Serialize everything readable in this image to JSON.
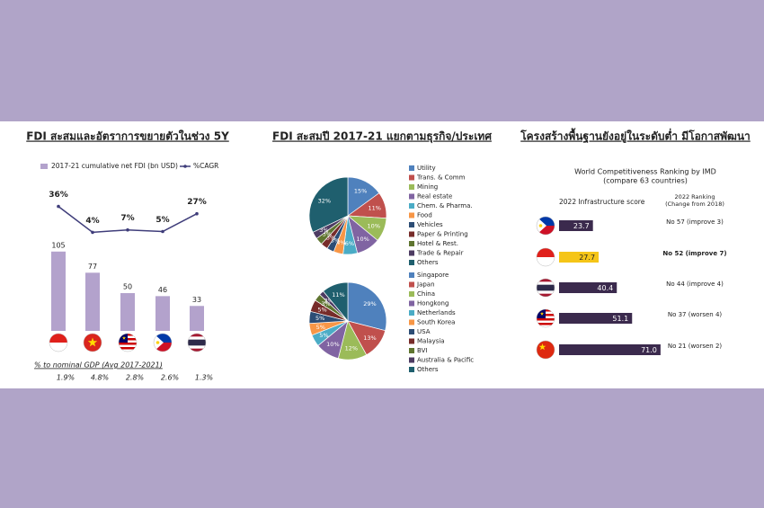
{
  "chart_data": [
    {
      "type": "bar_line",
      "title": "FDI สะสมและอัตราการขยายตัวในช่วง 5Y",
      "categories": [
        null,
        null,
        null,
        null,
        null
      ],
      "series": [
        {
          "name": "2017-21 cumulative net FDI (bn USD)",
          "type": "bar",
          "color": "#b3a2cc",
          "values": [
            105,
            77,
            50,
            46,
            33
          ]
        },
        {
          "name": "%CAGR",
          "type": "line",
          "color": "#3f3d7a",
          "values": [
            36,
            4,
            7,
            5,
            27
          ],
          "value_labels": [
            "36%",
            "4%",
            "7%",
            "5%",
            "27%"
          ]
        }
      ],
      "footnote": {
        "text": "% to nominal GDP (Avg 2017-2021)",
        "values": [
          1.9,
          4.8,
          2.8,
          2.6,
          1.3
        ],
        "value_labels": [
          "1.9%",
          "4.8%",
          "2.8%",
          "2.6%",
          "1.3%"
        ]
      }
    },
    {
      "type": "pie",
      "title": "FDI สะสมปี 2017-21 แยกตามธุรกิจ/ประเทศ",
      "categories": [
        "Utility",
        "Trans. & Comm",
        "Mining",
        "Real estate",
        "Chem. & Pharma.",
        "Food",
        "Vehicles",
        "Paper & Printing",
        "Hotel & Rest.",
        "Trade & Repair",
        "Others"
      ],
      "values": [
        15,
        11,
        10,
        10,
        6,
        4,
        3,
        3,
        3,
        3,
        32
      ],
      "value_labels": [
        "15%",
        "11%",
        "10%",
        "10%",
        "6%",
        "4%",
        "3%",
        "3%",
        "3%",
        "3%",
        "32%"
      ],
      "colors": [
        "#4f81bd",
        "#c0504d",
        "#9bbb59",
        "#8064a2",
        "#4bacc6",
        "#f79646",
        "#2c4d75",
        "#772c2a",
        "#5f7530",
        "#4d3b62",
        "#1f5f6e"
      ]
    },
    {
      "type": "pie",
      "categories": [
        "Singapore",
        "Japan",
        "China",
        "Hongkong",
        "Netherlands",
        "South Korea",
        "USA",
        "Malaysia",
        "BVI",
        "Australia & Pacific",
        "Others"
      ],
      "values": [
        29,
        13,
        12,
        10,
        5,
        5,
        5,
        5,
        3,
        2,
        11
      ],
      "value_labels": [
        "29%",
        "13%",
        "12%",
        "10%",
        "5%",
        "5%",
        "5%",
        "5%",
        "3%",
        "2%",
        "11%"
      ],
      "colors": [
        "#4f81bd",
        "#c0504d",
        "#9bbb59",
        "#8064a2",
        "#4bacc6",
        "#f79646",
        "#2c4d75",
        "#772c2a",
        "#5f7530",
        "#4d3b62",
        "#1f5f6e"
      ]
    },
    {
      "type": "barh",
      "title": "โครงสร้างพื้นฐานยังอยู่ในระดับต่ำ มีโอกาสพัฒนา",
      "subtitle": [
        "World Competitiveness Ranking by IMD",
        "(compare 63 countries)"
      ],
      "value_axis_label": "2022 Infrastructure score",
      "rank_header": [
        "2022 Ranking",
        "(Change from 2018)"
      ],
      "categories": [
        null,
        null,
        null,
        null,
        null
      ],
      "values": [
        23.7,
        27.7,
        40.4,
        51.1,
        71.0
      ],
      "value_labels": [
        "23.7",
        "27.7",
        "40.4",
        "51.1",
        "71.0"
      ],
      "colors": [
        "#3b2a4d",
        "#f5c518",
        "#3b2a4d",
        "#3b2a4d",
        "#3b2a4d"
      ],
      "rankings": [
        "No 57 (improve 3)",
        "No 52 (improve 7)",
        "No 44 (improve 4)",
        "No 37 (worsen 4)",
        "No 21 (worsen 2)"
      ],
      "highlight": 1
    }
  ]
}
